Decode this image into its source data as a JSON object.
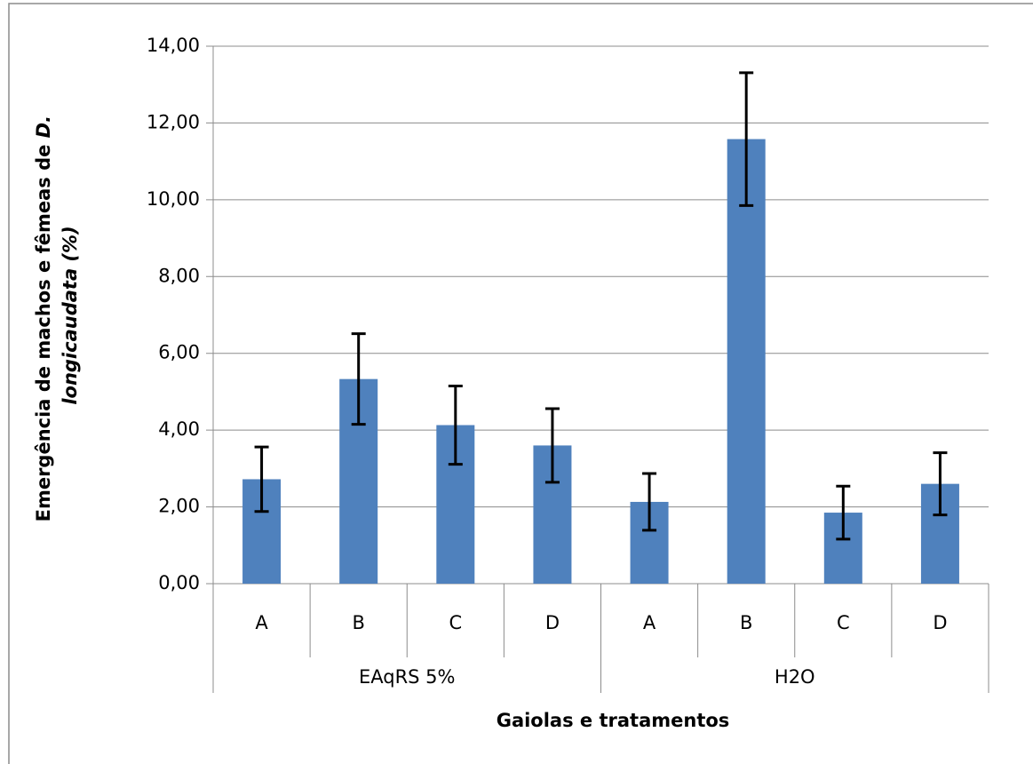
{
  "chart_data": {
    "type": "bar",
    "categories": [
      "A",
      "B",
      "C",
      "D",
      "A",
      "B",
      "C",
      "D"
    ],
    "groups": [
      "EAqRS 5%",
      "H2O"
    ],
    "values": [
      2.72,
      5.33,
      4.13,
      3.6,
      2.13,
      11.58,
      1.85,
      2.6
    ],
    "errors": [
      0.84,
      1.18,
      1.02,
      0.96,
      0.74,
      1.73,
      0.69,
      0.81
    ],
    "color": "#4f81bd",
    "ylim": [
      0,
      14
    ],
    "yticks": [
      {
        "value": 0,
        "label": "0,00"
      },
      {
        "value": 2,
        "label": "2,00"
      },
      {
        "value": 4,
        "label": "4,00"
      },
      {
        "value": 6,
        "label": "6,00"
      },
      {
        "value": 8,
        "label": "8,00"
      },
      {
        "value": 10,
        "label": "10,00"
      },
      {
        "value": 12,
        "label": "12,00"
      },
      {
        "value": 14,
        "label": "14,00"
      }
    ],
    "grid": true,
    "x_label": "Gaiolas e tratamentos",
    "y_label": [
      [
        "Emergência de machos e fêmeas de ",
        "D."
      ],
      [
        "longicaudata (%)"
      ]
    ]
  }
}
